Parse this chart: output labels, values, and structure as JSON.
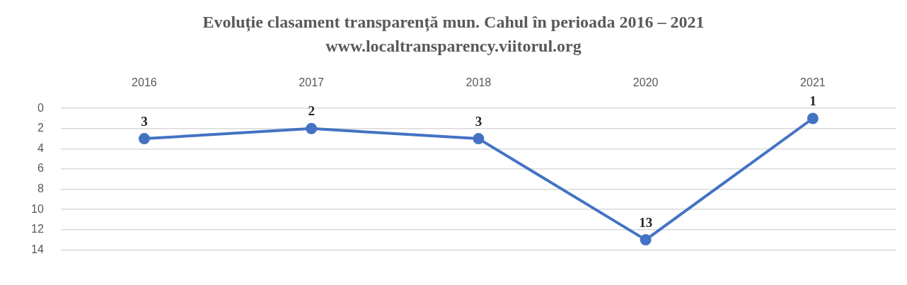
{
  "chart_data": {
    "type": "line",
    "title": "Evoluție clasament transparență mun. Cahul în perioada 2016 – 2021",
    "subtitle": "www.localtransparency.viitorul.org",
    "categories": [
      "2016",
      "2017",
      "2018",
      "2020",
      "2021"
    ],
    "series": [
      {
        "color": "#4472c4",
        "values": [
          3,
          2,
          3,
          13,
          1
        ]
      }
    ],
    "ylim": [
      14,
      0
    ],
    "yticks": [
      0,
      2,
      4,
      6,
      8,
      10,
      12,
      14
    ],
    "grid": "y",
    "marker": "circle",
    "line_style": "solid",
    "data_labels": true,
    "legend": false
  }
}
